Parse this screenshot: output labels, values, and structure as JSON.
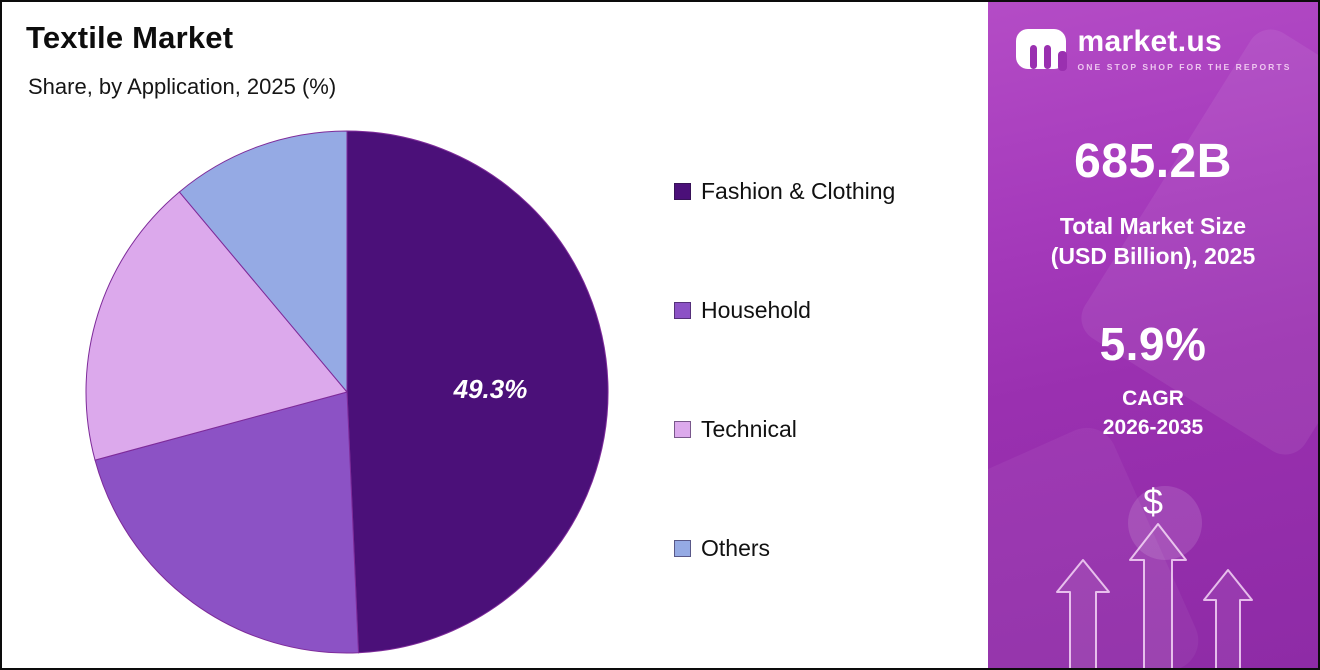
{
  "header": {
    "title": "Textile Market",
    "subtitle": "Share, by Application, 2025 (%)"
  },
  "chart_data": {
    "type": "pie",
    "title": "Textile Market",
    "subtitle": "Share, by Application, 2025 (%)",
    "categories": [
      "Fashion & Clothing",
      "Household",
      "Technical",
      "Others"
    ],
    "values": [
      49.3,
      21.5,
      18.1,
      11.1
    ],
    "colors": [
      "#4B1079",
      "#8C52C5",
      "#DCA9EC",
      "#95AAE4"
    ],
    "data_labels": [
      "49.3%",
      "",
      "",
      ""
    ],
    "units": "%",
    "start_angle_deg": 0,
    "direction": "clockwise",
    "legend_position": "right",
    "outline_color": "#7E2B9A"
  },
  "side_panel": {
    "logo": {
      "brand": "market.us",
      "tagline": "ONE STOP SHOP FOR THE REPORTS"
    },
    "market_size": {
      "value": "685.2B",
      "label_line1": "Total Market Size",
      "label_line2": "(USD Billion), 2025"
    },
    "cagr": {
      "value": "5.9%",
      "label_line1": "CAGR",
      "label_line2": "2026-2035"
    },
    "dollar_symbol": "$",
    "colors": {
      "panel_gradient_top": "#B44CC6",
      "panel_gradient_bottom": "#8E2BA6"
    }
  }
}
